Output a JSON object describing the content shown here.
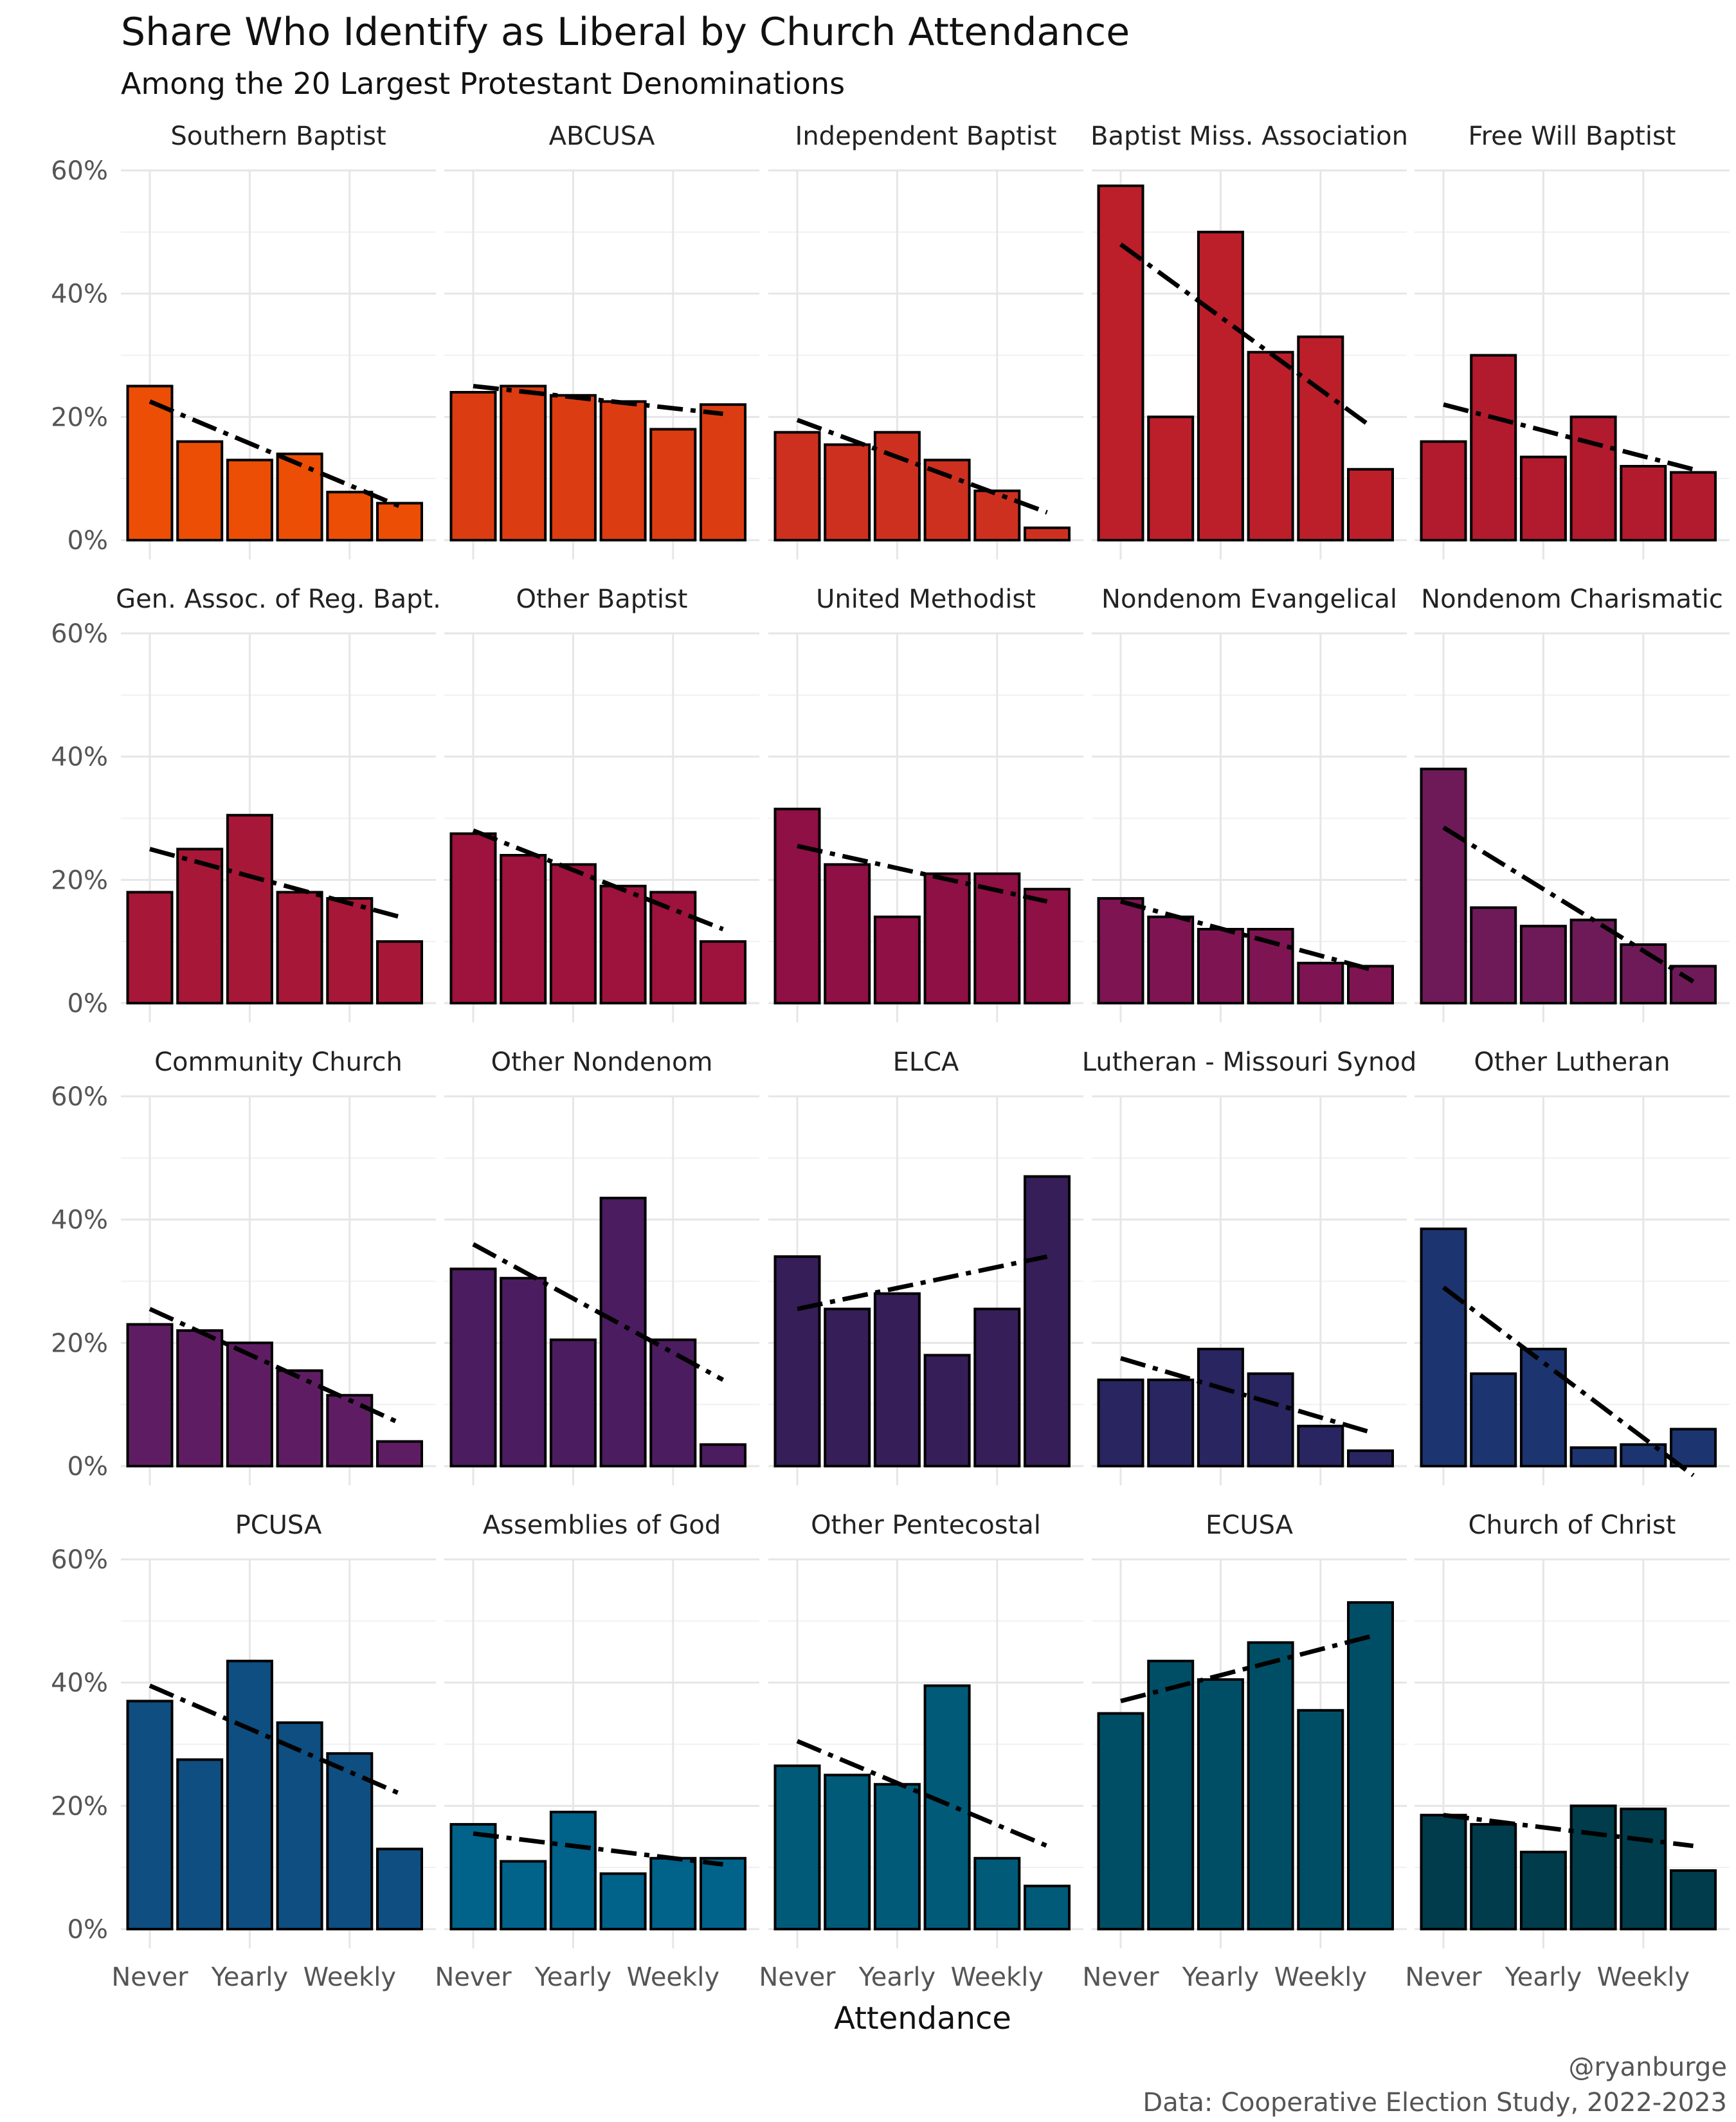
{
  "chart_data": {
    "type": "bar",
    "title": "Share Who Identify as Liberal by Church Attendance",
    "subtitle": "Among the 20 Largest Protestant Denominations",
    "xlabel": "Attendance",
    "ylabel": "",
    "ylim": [
      0,
      60
    ],
    "y_ticks": [
      "0%",
      "20%",
      "40%",
      "60%"
    ],
    "x_tick_labels": [
      "Never",
      "Yearly",
      "Weekly"
    ],
    "grid": true,
    "caption": [
      "@ryanburge",
      "Data: Cooperative Election Study, 2022-2023"
    ],
    "panels": [
      {
        "name": "Southern Baptist",
        "values": [
          25,
          16,
          13,
          14,
          7.8,
          6
        ],
        "trend": [
          22.5,
          5.5
        ],
        "color": "#EC4E05"
      },
      {
        "name": "ABCUSA",
        "values": [
          24,
          25,
          23.5,
          22.5,
          18,
          22
        ],
        "trend": [
          25,
          20.5
        ],
        "color": "#DC3C12"
      },
      {
        "name": "Independent Baptist",
        "values": [
          17.5,
          15.5,
          17.5,
          13,
          8,
          2
        ],
        "trend": [
          19.5,
          4.5
        ],
        "color": "#CE3020"
      },
      {
        "name": "Baptist Miss. Association",
        "values": [
          57.5,
          20,
          50,
          30.5,
          33,
          11.5
        ],
        "trend": [
          48,
          18.5
        ],
        "color": "#BC1E2A"
      },
      {
        "name": "Free Will Baptist",
        "values": [
          16,
          30,
          13.5,
          20,
          12,
          11
        ],
        "trend": [
          22,
          11.5
        ],
        "color": "#B21A2E"
      },
      {
        "name": "Gen. Assoc. of Reg. Bapt.",
        "values": [
          18,
          25,
          30.5,
          18,
          17,
          10
        ],
        "trend": [
          25,
          14
        ],
        "color": "#A71737"
      },
      {
        "name": "Other Baptist",
        "values": [
          27.5,
          24,
          22.5,
          19,
          18,
          10
        ],
        "trend": [
          28,
          12
        ],
        "color": "#9E123E"
      },
      {
        "name": "United Methodist",
        "values": [
          31.5,
          22.5,
          14,
          21,
          21,
          18.5
        ],
        "trend": [
          25.5,
          16.5
        ],
        "color": "#8E1044"
      },
      {
        "name": "Nondenom Evangelical",
        "values": [
          17,
          14,
          12,
          12,
          6.5,
          6
        ],
        "trend": [
          16.5,
          5.5
        ],
        "color": "#7E1452"
      },
      {
        "name": "Nondenom Charismatic",
        "values": [
          38,
          15.5,
          12.5,
          13.5,
          9.5,
          6
        ],
        "trend": [
          28.5,
          3.5
        ],
        "color": "#6E1A58"
      },
      {
        "name": "Community Church",
        "values": [
          23,
          22,
          20,
          15.5,
          11.5,
          4
        ],
        "trend": [
          25.5,
          7
        ],
        "color": "#5E1D62"
      },
      {
        "name": "Other Nondenom",
        "values": [
          32,
          30.5,
          20.5,
          43.5,
          20.5,
          3.5
        ],
        "trend": [
          36,
          14
        ],
        "color": "#4B1C5F"
      },
      {
        "name": "ELCA",
        "values": [
          34,
          25.5,
          28,
          18,
          25.5,
          47
        ],
        "trend": [
          25.5,
          34
        ],
        "color": "#361E58"
      },
      {
        "name": "Lutheran - Missouri Synod",
        "values": [
          14,
          14,
          19,
          15,
          6.5,
          2.5
        ],
        "trend": [
          17.5,
          5.5
        ],
        "color": "#282560"
      },
      {
        "name": "Other Lutheran",
        "values": [
          38.5,
          15,
          19,
          3,
          3.5,
          6
        ],
        "trend": [
          29,
          -1.5
        ],
        "color": "#1C3570"
      },
      {
        "name": "PCUSA",
        "values": [
          37,
          27.5,
          43.5,
          33.5,
          28.5,
          13
        ],
        "trend": [
          39.5,
          22
        ],
        "color": "#0E4E80"
      },
      {
        "name": "Assemblies of God",
        "values": [
          17,
          11,
          19,
          9,
          11.5,
          11.5
        ],
        "trend": [
          15.5,
          10.5
        ],
        "color": "#01628A"
      },
      {
        "name": "Other Pentecostal",
        "values": [
          26.5,
          25,
          23.5,
          39.5,
          11.5,
          7
        ],
        "trend": [
          30.5,
          13.5
        ],
        "color": "#005A78"
      },
      {
        "name": "ECUSA",
        "values": [
          35,
          43.5,
          40.5,
          46.5,
          35.5,
          53
        ],
        "trend": [
          37,
          47.5
        ],
        "color": "#004E66"
      },
      {
        "name": "Church of Christ",
        "values": [
          18.5,
          17,
          12.5,
          20,
          19.5,
          9.5
        ],
        "trend": [
          18.5,
          13.5
        ],
        "color": "#003C4C"
      }
    ]
  }
}
